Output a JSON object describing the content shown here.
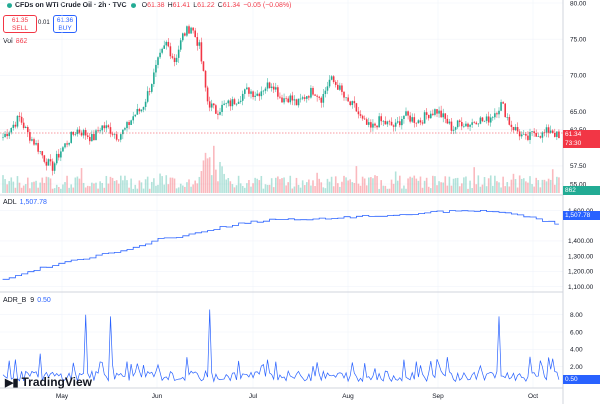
{
  "header": {
    "title": "CFDs on WTI Crude Oil · 2h · TVC",
    "o_label": "O",
    "o_value": "61.38",
    "h_label": "H",
    "h_value": "61.41",
    "l_label": "L",
    "l_value": "61.22",
    "c_label": "C",
    "c_value": "61.34",
    "change": "−0.05 (−0.08%)"
  },
  "trade": {
    "sell_price": "61.35",
    "sell_label": "SELL",
    "spread": "0.01",
    "buy_price": "61.36",
    "buy_label": "BUY"
  },
  "volume": {
    "label": "Vol",
    "value": "862"
  },
  "price_axis": {
    "ticks": [
      "80.00",
      "75.00",
      "70.00",
      "65.00",
      "62.50",
      "57.50",
      "55.00"
    ]
  },
  "price_tag": {
    "price": "61.34",
    "countdown": "73:30"
  },
  "volume_tag": "862",
  "adl": {
    "label": "ADL",
    "value": "1,507.78",
    "ticks": [
      "1,600.00",
      "1,400.00",
      "1,300.00",
      "1,200.00",
      "1,100.00"
    ]
  },
  "adr": {
    "label": "ADR_B",
    "param": "9",
    "value": "0.50",
    "ticks": [
      "8.00",
      "6.00",
      "4.00",
      "2.00"
    ]
  },
  "time_axis": [
    "May",
    "Jun",
    "Jul",
    "Aug",
    "Sep",
    "Oct"
  ],
  "branding": "TradingView",
  "colors": {
    "up": "#22ab94",
    "down": "#f23645",
    "line": "#2962ff"
  },
  "chart_data": [
    {
      "type": "candlestick",
      "title": "CFDs on WTI Crude Oil · 2h · TVC",
      "ylim": [
        55,
        80
      ],
      "x_labels": [
        "May",
        "Jun",
        "Jul",
        "Aug",
        "Sep",
        "Oct"
      ],
      "close_path": [
        [
          "Apr end",
          61.5
        ],
        [
          "Apr end",
          62.8
        ],
        [
          "Apr end",
          64.2
        ],
        [
          "Apr end",
          62.0
        ],
        [
          "May",
          60.5
        ],
        [
          "May",
          58.6
        ],
        [
          "May",
          57.2
        ],
        [
          "May",
          59.5
        ],
        [
          "May",
          61.0
        ],
        [
          "May",
          62.5
        ],
        [
          "May",
          62.0
        ],
        [
          "May",
          61.2
        ],
        [
          "May",
          63.0
        ],
        [
          "May",
          62.6
        ],
        [
          "May",
          61.6
        ],
        [
          "May",
          62.6
        ],
        [
          "Jun",
          64.5
        ],
        [
          "Jun",
          65.4
        ],
        [
          "Jun",
          68.4
        ],
        [
          "Jun",
          72.0
        ],
        [
          "Jun",
          74.5
        ],
        [
          "Jun",
          72.0
        ],
        [
          "Jun",
          75.5
        ],
        [
          "Jun",
          76.8
        ],
        [
          "Jun",
          74.0
        ],
        [
          "Jun",
          66.5
        ],
        [
          "Jun",
          65.0
        ],
        [
          "Jun",
          65.8
        ],
        [
          "Jul",
          66.2
        ],
        [
          "Jul",
          67.1
        ],
        [
          "Jul",
          68.0
        ],
        [
          "Jul",
          67.4
        ],
        [
          "Jul",
          68.4
        ],
        [
          "Jul",
          69.0
        ],
        [
          "Jul",
          66.8
        ],
        [
          "Jul",
          67.0
        ],
        [
          "Jul",
          66.0
        ],
        [
          "Jul",
          67.2
        ],
        [
          "Jul",
          68.0
        ],
        [
          "Jul",
          66.8
        ],
        [
          "Jul",
          69.5
        ],
        [
          "Aug",
          68.5
        ],
        [
          "Aug",
          66.3
        ],
        [
          "Aug",
          65.6
        ],
        [
          "Aug",
          63.6
        ],
        [
          "Aug",
          62.6
        ],
        [
          "Aug",
          63.7
        ],
        [
          "Aug",
          63.3
        ],
        [
          "Aug",
          62.9
        ],
        [
          "Aug",
          64.5
        ],
        [
          "Aug",
          64.0
        ],
        [
          "Aug",
          63.7
        ],
        [
          "Sep",
          64.7
        ],
        [
          "Sep",
          65.2
        ],
        [
          "Sep",
          64.0
        ],
        [
          "Sep",
          62.6
        ],
        [
          "Sep",
          63.6
        ],
        [
          "Sep",
          63.2
        ],
        [
          "Sep",
          64.0
        ],
        [
          "Sep",
          63.6
        ],
        [
          "Sep",
          64.7
        ],
        [
          "Sep",
          66.1
        ],
        [
          "Sep",
          63.3
        ],
        [
          "Oct",
          62.2
        ],
        [
          "Oct",
          61.0
        ],
        [
          "Oct",
          62.2
        ],
        [
          "Oct",
          61.8
        ],
        [
          "Oct",
          62.6
        ],
        [
          "Oct",
          61.34
        ]
      ]
    },
    {
      "type": "line",
      "title": "ADL",
      "ylim": [
        1100,
        1650
      ],
      "close_path": [
        [
          "Apr end",
          1150
        ],
        [
          "May",
          1210
        ],
        [
          "May",
          1260
        ],
        [
          "May",
          1300
        ],
        [
          "Jun",
          1350
        ],
        [
          "Jun",
          1410
        ],
        [
          "Jun",
          1440
        ],
        [
          "Jul",
          1490
        ],
        [
          "Jul",
          1525
        ],
        [
          "Jul",
          1545
        ],
        [
          "Aug",
          1540
        ],
        [
          "Aug",
          1555
        ],
        [
          "Aug",
          1565
        ],
        [
          "Sep",
          1575
        ],
        [
          "Sep",
          1590
        ],
        [
          "Sep",
          1600
        ],
        [
          "Oct",
          1590
        ],
        [
          "Oct",
          1560
        ],
        [
          "Oct",
          1507.78
        ]
      ]
    },
    {
      "type": "line",
      "title": "ADR_B 9",
      "ylim": [
        0,
        9
      ],
      "peaks": [
        [
          "May",
          8.0
        ],
        [
          "May",
          8.0
        ],
        [
          "Jun",
          8.6
        ],
        [
          "Sep",
          7.8
        ]
      ],
      "last": 0.5
    }
  ]
}
